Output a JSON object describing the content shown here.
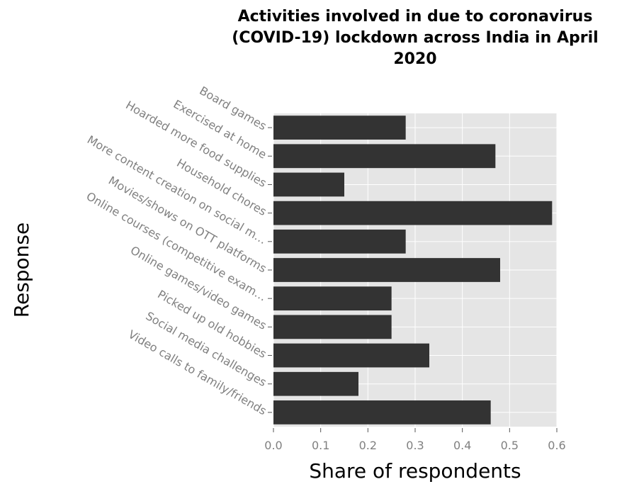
{
  "chart_data": {
    "type": "bar",
    "orientation": "horizontal",
    "title": "Activities involved in due to coronavirus (COVID-19) lockdown across India in April 2020",
    "title_lines": [
      "Activities involved in due to coronavirus",
      "(COVID-19) lockdown across India in April",
      "2020"
    ],
    "xlabel": "Share of respondents",
    "ylabel": "Response",
    "xlim": [
      0,
      0.6
    ],
    "x_ticks": [
      "0.0",
      "0.1",
      "0.2",
      "0.3",
      "0.4",
      "0.5",
      "0.6"
    ],
    "categories": [
      "Board games",
      "Exercised at home",
      "Hoarded more food supplies",
      "Household chores",
      "More content creation on social m…",
      "Movies/shows on OTT platforms",
      "Online courses (competitive exam…",
      "Online games/video games",
      "Picked up old hobbies",
      "Social media challenges",
      "Video calls to family/friends"
    ],
    "values": [
      0.28,
      0.47,
      0.15,
      0.59,
      0.28,
      0.48,
      0.25,
      0.25,
      0.33,
      0.18,
      0.46
    ],
    "grid": true,
    "colors": {
      "bar": "#333333",
      "panel": "#e5e5e5",
      "grid": "#ffffff",
      "tick_text": "#808080"
    }
  }
}
